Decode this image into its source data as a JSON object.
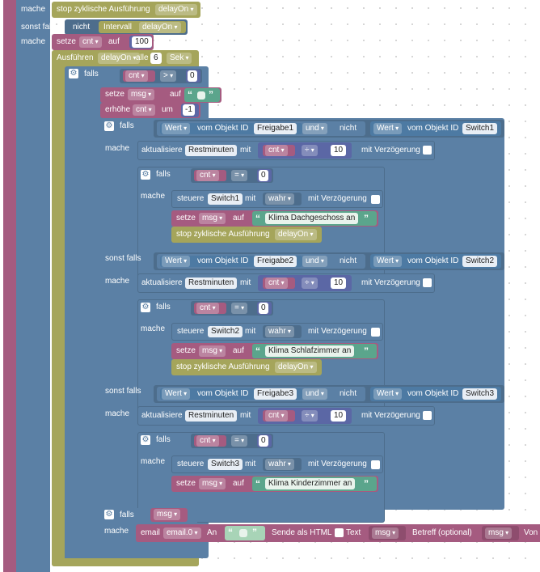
{
  "top": {
    "mache1": "mache",
    "stop_label": "stop zyklische Ausführung",
    "stop_var": "delayOn",
    "sonst_falls": "sonst falls",
    "nicht": "nicht",
    "intervall": "Intervall",
    "intervall_var": "delayOn",
    "mache2": "mache",
    "setze": "setze",
    "cnt": "cnt",
    "auf": "auf",
    "value_100": "100",
    "ausfuehren": "Ausführen",
    "delay_var": "delayOn",
    "alle": "alle",
    "value_6": "6",
    "sek": "Sek"
  },
  "if1": {
    "falls": "falls",
    "cnt": "cnt",
    "op": ">",
    "value": "0",
    "mache": "mache",
    "setze": "setze",
    "msg": "msg",
    "auf": "auf",
    "erhoehe": "erhöhe",
    "cnt2": "cnt",
    "um": "um",
    "minus1": "-1"
  },
  "branches": [
    {
      "falls": "falls",
      "wert": "Wert",
      "vom_objekt": "vom Objekt ID",
      "freigabe": "Freigabe1",
      "und": "und",
      "nicht": "nicht",
      "wert2": "Wert",
      "vom_objekt2": "vom Objekt ID",
      "switch": "Switch1",
      "mache": "mache",
      "aktualisiere": "aktualisiere",
      "rest": "Restminuten",
      "mit": "mit",
      "cnt": "cnt",
      "div": "÷",
      "ten": "10",
      "verz": "mit Verzögerung",
      "falls2": "falls",
      "cnt2": "cnt",
      "eq": "=",
      "zero": "0",
      "mache2": "mache",
      "steuere": "steuere",
      "sw": "Switch1",
      "mit2": "mit",
      "wahr": "wahr",
      "verz2": "mit Verzögerung",
      "setze": "setze",
      "msg": "msg",
      "auf": "auf",
      "text": "Klima Dachgeschoss an",
      "stop": "stop zyklische Ausführung",
      "stopvar": "delayOn"
    },
    {
      "falls": "sonst falls",
      "wert": "Wert",
      "vom_objekt": "vom Objekt ID",
      "freigabe": "Freigabe2",
      "und": "und",
      "nicht": "nicht",
      "wert2": "Wert",
      "vom_objekt2": "vom Objekt ID",
      "switch": "Switch2",
      "mache": "mache",
      "aktualisiere": "aktualisiere",
      "rest": "Restminuten",
      "mit": "mit",
      "cnt": "cnt",
      "div": "÷",
      "ten": "10",
      "verz": "mit Verzögerung",
      "falls2": "falls",
      "cnt2": "cnt",
      "eq": "=",
      "zero": "0",
      "mache2": "mache",
      "steuere": "steuere",
      "sw": "Switch2",
      "mit2": "mit",
      "wahr": "wahr",
      "verz2": "mit Verzögerung",
      "setze": "setze",
      "msg": "msg",
      "auf": "auf",
      "text": "Klima Schlafzimmer an",
      "stop": "stop zyklische Ausführung",
      "stopvar": "delayOn"
    },
    {
      "falls": "sonst falls",
      "wert": "Wert",
      "vom_objekt": "vom Objekt ID",
      "freigabe": "Freigabe3",
      "und": "und",
      "nicht": "nicht",
      "wert2": "Wert",
      "vom_objekt2": "vom Objekt ID",
      "switch": "Switch3",
      "mache": "mache",
      "aktualisiere": "aktualisiere",
      "rest": "Restminuten",
      "mit": "mit",
      "cnt": "cnt",
      "div": "÷",
      "ten": "10",
      "verz": "mit Verzögerung",
      "falls2": "falls",
      "cnt2": "cnt",
      "eq": "=",
      "zero": "0",
      "mache2": "mache",
      "steuere": "steuere",
      "sw": "Switch3",
      "mit2": "mit",
      "wahr": "wahr",
      "verz2": "mit Verzögerung",
      "setze": "setze",
      "msg": "msg",
      "auf": "auf",
      "text": "Klima Kinderzimmer an"
    }
  ],
  "email": {
    "falls": "falls",
    "msg": "msg",
    "mache": "mache",
    "email": "email",
    "email_var": "email.0",
    "an": "An",
    "sende_html": "Sende als HTML",
    "text": "Text",
    "text_var": "msg",
    "betreff": "Betreff (optional)",
    "betreff_var": "msg",
    "von": "Von"
  },
  "colors": {
    "logic": "#5b80a5",
    "variables": "#a55b80",
    "timers": "#a5a55b",
    "text": "#5ba58c",
    "math": "#5b67a5"
  }
}
